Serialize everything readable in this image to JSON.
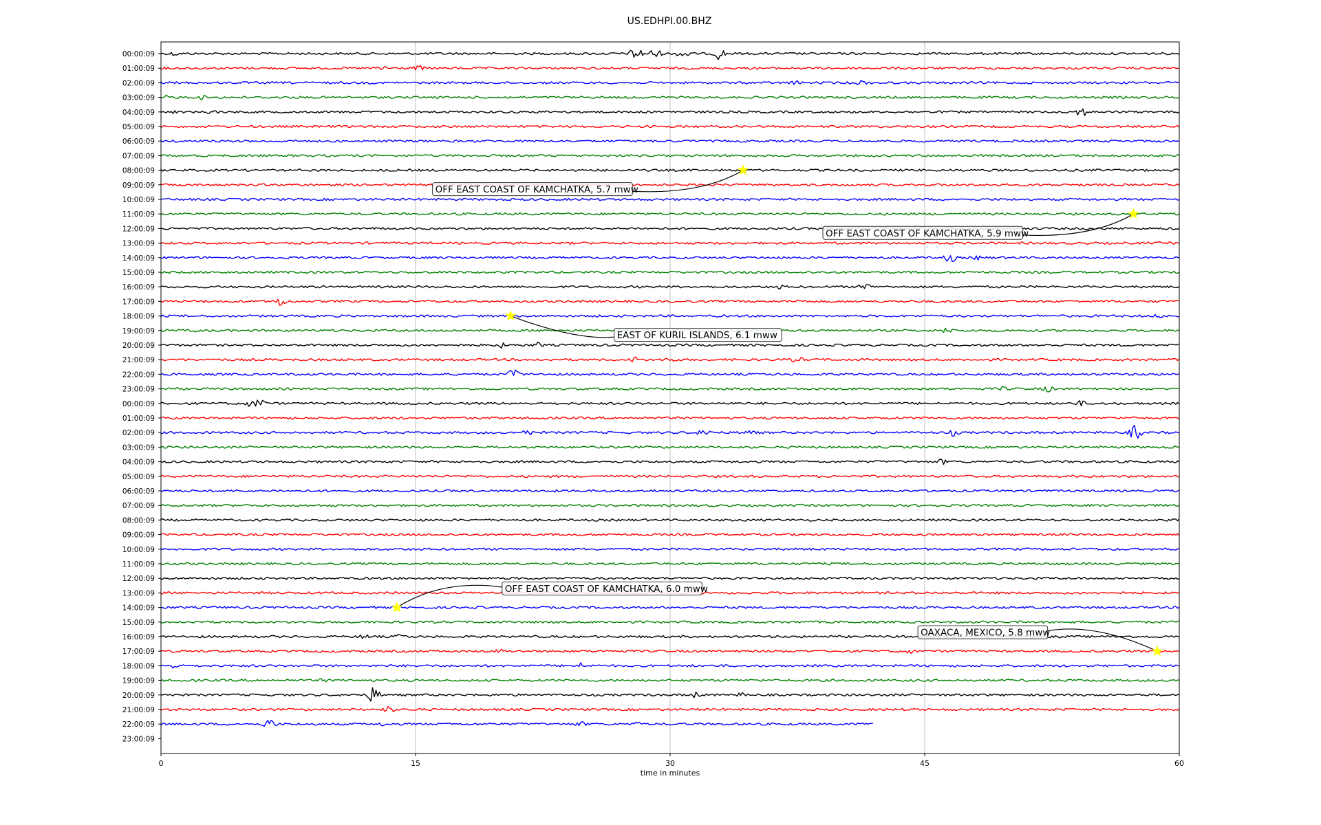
{
  "chart_data": {
    "type": "line",
    "title": "US.EDHPI.00.BHZ",
    "xlabel": "time in minutes",
    "ylabel": "",
    "xlim": [
      0,
      60
    ],
    "xticks": [
      0,
      15,
      30,
      45,
      60
    ],
    "grid": "vertical",
    "trace_colors": [
      "#000000",
      "#ff0000",
      "#0000ff",
      "#008000"
    ],
    "row_labels": [
      "00:00:09",
      "01:00:09",
      "02:00:09",
      "03:00:09",
      "04:00:09",
      "05:00:09",
      "06:00:09",
      "07:00:09",
      "08:00:09",
      "09:00:09",
      "10:00:09",
      "11:00:09",
      "12:00:09",
      "13:00:09",
      "14:00:09",
      "15:00:09",
      "16:00:09",
      "17:00:09",
      "18:00:09",
      "19:00:09",
      "20:00:09",
      "21:00:09",
      "22:00:09",
      "23:00:09",
      "00:00:09",
      "01:00:09",
      "02:00:09",
      "03:00:09",
      "04:00:09",
      "05:00:09",
      "06:00:09",
      "07:00:09",
      "08:00:09",
      "09:00:09",
      "10:00:09",
      "11:00:09",
      "12:00:09",
      "13:00:09",
      "14:00:09",
      "15:00:09",
      "16:00:09",
      "17:00:09",
      "18:00:09",
      "19:00:09",
      "20:00:09",
      "21:00:09",
      "22:00:09",
      "23:00:09"
    ],
    "trace_end_minutes": 42,
    "last_trace_row": 46,
    "events": [
      {
        "row": 8,
        "minute": 34.3,
        "label": "OFF EAST COAST OF KAMCHATKA, 5.7 mww",
        "label_row": 9.3,
        "label_minute": 16
      },
      {
        "row": 11,
        "minute": 57.3,
        "label": "OFF EAST COAST OF KAMCHATKA, 5.9 mww",
        "label_row": 12.3,
        "label_minute": 39
      },
      {
        "row": 18,
        "minute": 20.6,
        "label": "EAST OF KURIL ISLANDS, 6.1 mww",
        "label_row": 19.3,
        "label_minute": 26.7
      },
      {
        "row": 38,
        "minute": 13.9,
        "label": "OFF EAST COAST OF KAMCHATKA, 6.0 mww",
        "label_row": 36.7,
        "label_minute": 20.1
      },
      {
        "row": 41,
        "minute": 58.7,
        "label": "OAXACA, MEXICO, 5.8 mww",
        "label_row": 39.7,
        "label_minute": 44.6
      }
    ],
    "bursts": [
      {
        "row": 0,
        "minute": 28.0,
        "amp": 12
      },
      {
        "row": 0,
        "minute": 29.1,
        "amp": 9
      },
      {
        "row": 0,
        "minute": 30.8,
        "amp": 10
      },
      {
        "row": 0,
        "minute": 32.9,
        "amp": 10
      },
      {
        "row": 0,
        "minute": 0.8,
        "amp": 4
      },
      {
        "row": 1,
        "minute": 13.0,
        "amp": 6
      },
      {
        "row": 1,
        "minute": 15.2,
        "amp": 5
      },
      {
        "row": 2,
        "minute": 37.3,
        "amp": 5
      },
      {
        "row": 2,
        "minute": 41.3,
        "amp": 5
      },
      {
        "row": 2,
        "minute": 59.2,
        "amp": 3
      },
      {
        "row": 3,
        "minute": 0.4,
        "amp": 4
      },
      {
        "row": 3,
        "minute": 2.4,
        "amp": 4
      },
      {
        "row": 4,
        "minute": 3.0,
        "amp": 5
      },
      {
        "row": 4,
        "minute": 54.2,
        "amp": 9
      },
      {
        "row": 4,
        "minute": 0.8,
        "amp": 3
      },
      {
        "row": 14,
        "minute": 46.5,
        "amp": 8
      },
      {
        "row": 14,
        "minute": 48.2,
        "amp": 5
      },
      {
        "row": 16,
        "minute": 41.5,
        "amp": 7
      },
      {
        "row": 16,
        "minute": 36.5,
        "amp": 4
      },
      {
        "row": 17,
        "minute": 7.1,
        "amp": 9
      },
      {
        "row": 17,
        "minute": 37.6,
        "amp": 4
      },
      {
        "row": 18,
        "minute": 58.8,
        "amp": 4
      },
      {
        "row": 19,
        "minute": 46.3,
        "amp": 6
      },
      {
        "row": 19,
        "minute": 2.0,
        "amp": 4
      },
      {
        "row": 20,
        "minute": 20.0,
        "amp": 5
      },
      {
        "row": 20,
        "minute": 22.2,
        "amp": 5
      },
      {
        "row": 21,
        "minute": 28.0,
        "amp": 6
      },
      {
        "row": 21,
        "minute": 30.0,
        "amp": 6
      },
      {
        "row": 21,
        "minute": 37.5,
        "amp": 6
      },
      {
        "row": 22,
        "minute": 20.8,
        "amp": 9
      },
      {
        "row": 23,
        "minute": 52.3,
        "amp": 6
      },
      {
        "row": 23,
        "minute": 49.6,
        "amp": 4
      },
      {
        "row": 24,
        "minute": 5.2,
        "amp": 6
      },
      {
        "row": 24,
        "minute": 5.8,
        "amp": 8
      },
      {
        "row": 24,
        "minute": 54.2,
        "amp": 5
      },
      {
        "row": 26,
        "minute": 21.6,
        "amp": 6
      },
      {
        "row": 26,
        "minute": 32.0,
        "amp": 8
      },
      {
        "row": 26,
        "minute": 34.7,
        "amp": 6
      },
      {
        "row": 26,
        "minute": 46.7,
        "amp": 6
      },
      {
        "row": 26,
        "minute": 57.4,
        "amp": 12
      },
      {
        "row": 28,
        "minute": 46.0,
        "amp": 5
      },
      {
        "row": 40,
        "minute": 12.0,
        "amp": 5
      },
      {
        "row": 40,
        "minute": 14.1,
        "amp": 5
      },
      {
        "row": 41,
        "minute": 44.1,
        "amp": 5
      },
      {
        "row": 41,
        "minute": 20.0,
        "amp": 4
      },
      {
        "row": 42,
        "minute": 0.8,
        "amp": 5
      },
      {
        "row": 42,
        "minute": 24.7,
        "amp": 5
      },
      {
        "row": 43,
        "minute": 9.6,
        "amp": 4
      },
      {
        "row": 44,
        "minute": 12.5,
        "amp": 13
      },
      {
        "row": 44,
        "minute": 31.4,
        "amp": 6
      },
      {
        "row": 44,
        "minute": 34.2,
        "amp": 4
      },
      {
        "row": 45,
        "minute": 13.4,
        "amp": 6
      },
      {
        "row": 46,
        "minute": 6.4,
        "amp": 10
      },
      {
        "row": 46,
        "minute": 13.1,
        "amp": 4
      },
      {
        "row": 46,
        "minute": 24.7,
        "amp": 5
      },
      {
        "row": 46,
        "minute": 27.9,
        "amp": 5
      }
    ]
  }
}
